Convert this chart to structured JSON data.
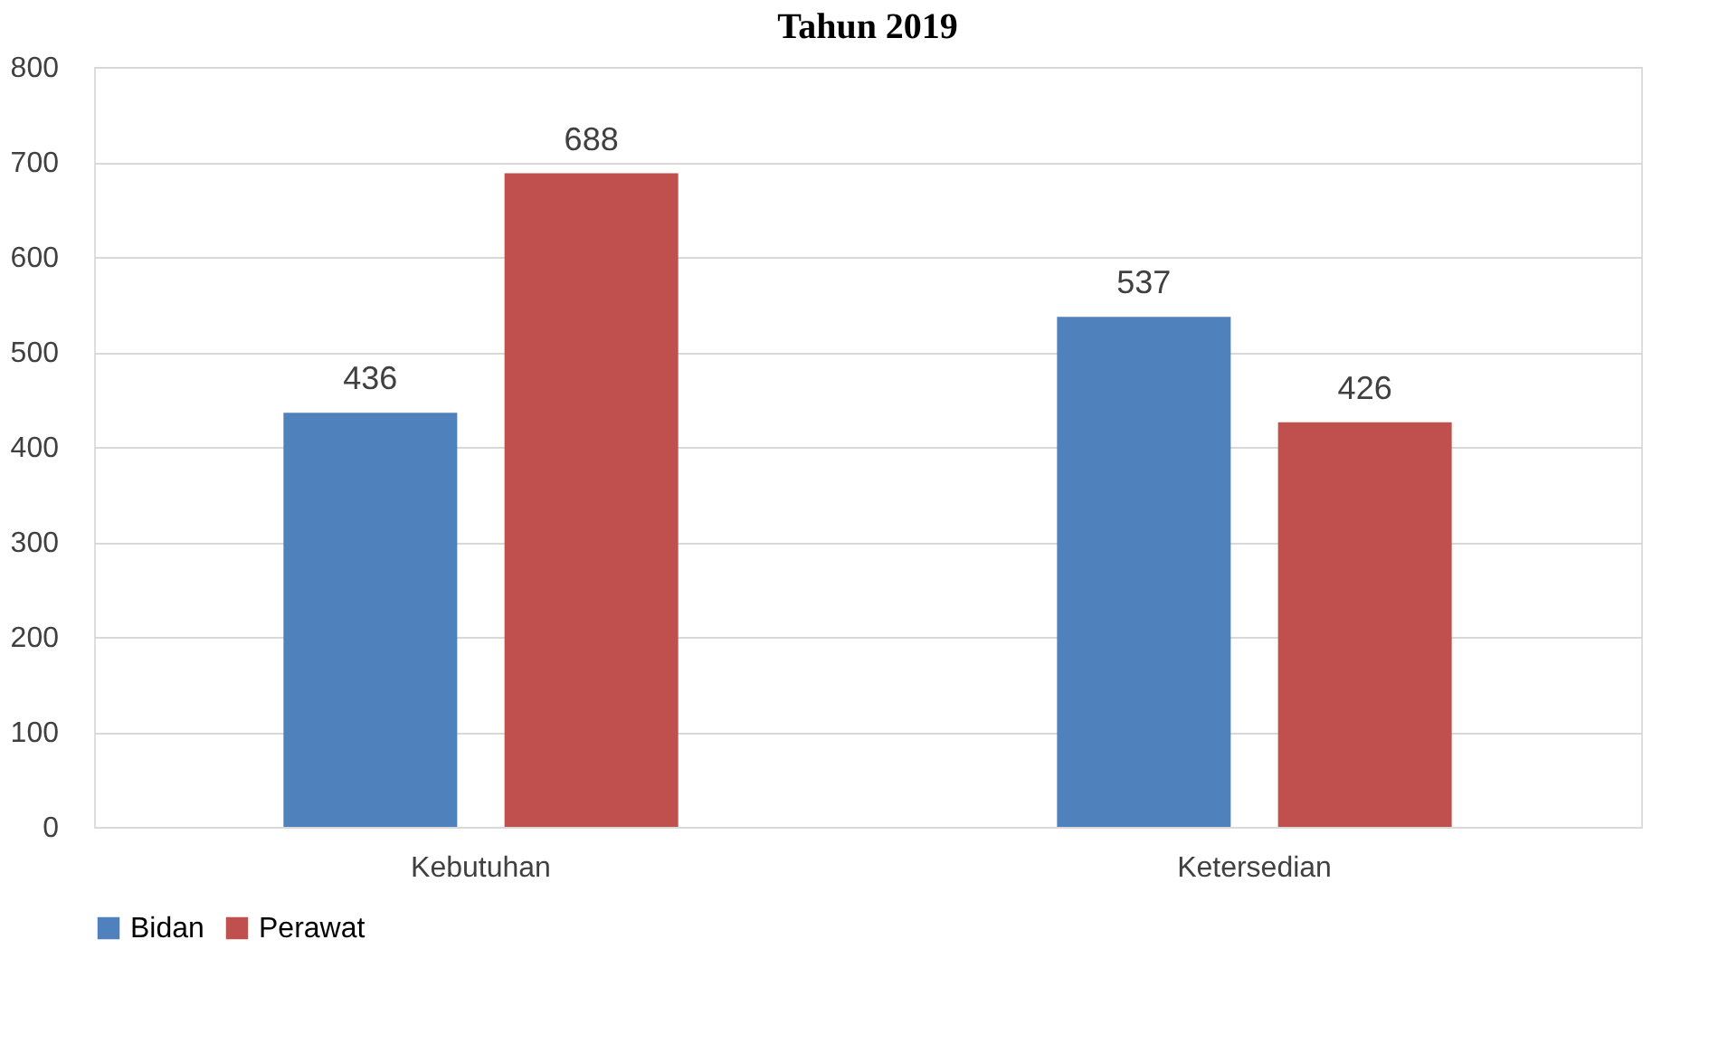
{
  "chart_data": {
    "type": "bar",
    "title": "Tahun 2019",
    "categories": [
      "Kebutuhan",
      "Ketersedian"
    ],
    "series": [
      {
        "name": "Bidan",
        "color": "#4f81bd",
        "values": [
          436,
          537
        ]
      },
      {
        "name": "Perawat",
        "color": "#c0504d",
        "values": [
          688,
          426
        ]
      }
    ],
    "ylim": [
      0,
      800
    ],
    "yticks": [
      0,
      100,
      200,
      300,
      400,
      500,
      600,
      700,
      800
    ],
    "grid": "y",
    "legend": "bottom",
    "data_labels": true
  }
}
